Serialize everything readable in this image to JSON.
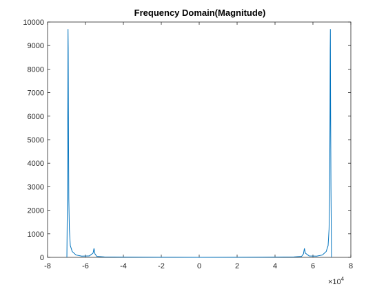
{
  "chart_data": {
    "type": "line",
    "title": "Frequency Domain(Magnitude)",
    "xlabel": "",
    "ylabel": "",
    "xlim": [
      -8,
      8
    ],
    "ylim": [
      0,
      10000
    ],
    "x_scale_note": "×10^4",
    "x_exponent_base": "×10",
    "x_exponent_power": "4",
    "xticks": [
      "-8",
      "-6",
      "-4",
      "-2",
      "0",
      "2",
      "4",
      "6",
      "8"
    ],
    "yticks": [
      "0",
      "1000",
      "2000",
      "3000",
      "4000",
      "5000",
      "6000",
      "7000",
      "8000",
      "9000",
      "10000"
    ],
    "grid": false,
    "line_color": "#0072BD",
    "series": [
      {
        "name": "",
        "x": [
          -6.98,
          -6.95,
          -6.93,
          -6.92,
          -6.91,
          -6.9,
          -6.88,
          -6.85,
          -6.8,
          -6.7,
          -6.5,
          -6.2,
          -5.8,
          -5.6,
          -5.55,
          -5.5,
          -5.4,
          -5.0,
          -4.0,
          -2.0,
          0.0,
          2.0,
          4.0,
          5.0,
          5.4,
          5.5,
          5.55,
          5.6,
          5.8,
          6.2,
          6.5,
          6.7,
          6.8,
          6.85,
          6.88,
          6.9,
          6.91,
          6.92,
          6.93,
          6.95,
          6.98
        ],
        "values": [
          0,
          3000,
          6900,
          9700,
          8800,
          6200,
          2500,
          1200,
          500,
          250,
          100,
          50,
          60,
          180,
          380,
          150,
          40,
          20,
          10,
          5,
          0,
          5,
          10,
          20,
          40,
          150,
          380,
          180,
          60,
          50,
          100,
          250,
          500,
          1200,
          2500,
          6200,
          8800,
          9700,
          6900,
          3000,
          0
        ]
      }
    ]
  }
}
